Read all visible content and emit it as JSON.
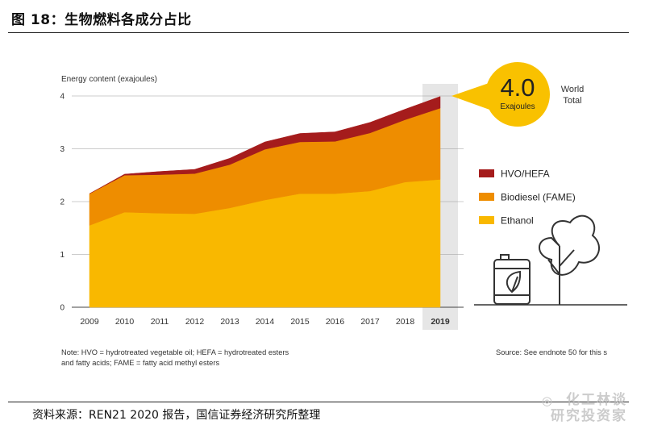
{
  "figure": {
    "title": "图 18：生物燃料各成分占比",
    "source": "资料来源：REN21 2020 报告，国信证券经济研究所整理",
    "watermark": [
      "化工林谈",
      "研究投资家"
    ]
  },
  "chart_data": {
    "type": "area",
    "stacked": true,
    "ylabel": "Energy content (exajoules)",
    "xlabel": "",
    "categories": [
      "2009",
      "2010",
      "2011",
      "2012",
      "2013",
      "2014",
      "2015",
      "2016",
      "2017",
      "2018",
      "2019"
    ],
    "yticks": [
      0,
      1,
      2,
      3,
      4
    ],
    "ylim": [
      0,
      4
    ],
    "series": [
      {
        "name": "Ethanol",
        "color": "#f9b800",
        "values": [
          1.55,
          1.8,
          1.78,
          1.77,
          1.88,
          2.03,
          2.15,
          2.15,
          2.2,
          2.37,
          2.42
        ]
      },
      {
        "name": "Biodiesel (FAME)",
        "color": "#ee8d00",
        "values": [
          0.6,
          0.7,
          0.73,
          0.76,
          0.82,
          0.96,
          0.98,
          0.99,
          1.1,
          1.18,
          1.35
        ]
      },
      {
        "name": "HVO/HEFA",
        "color": "#a51c1c",
        "values": [
          0.0,
          0.02,
          0.06,
          0.08,
          0.12,
          0.14,
          0.16,
          0.18,
          0.2,
          0.2,
          0.22
        ]
      }
    ],
    "legend": [
      "HVO/HEFA",
      "Biodiesel (FAME)",
      "Ethanol"
    ],
    "legend_position": "right",
    "highlight_category": "2019",
    "callout": {
      "value": "4.0",
      "unit": "Exajoules",
      "label_line1": "World",
      "label_line2": "Total",
      "color": "#f9c100"
    },
    "note_line1": "Note: HVO = hydrotreated vegetable oil; HEFA = hydrotreated esters",
    "note_line2": "and fatty acids; FAME = fatty acid methyl esters",
    "source_note": "Source: See endnote 50 for this s",
    "icons": [
      "fuel-barrel-icon",
      "leaf-tree-icon"
    ]
  }
}
